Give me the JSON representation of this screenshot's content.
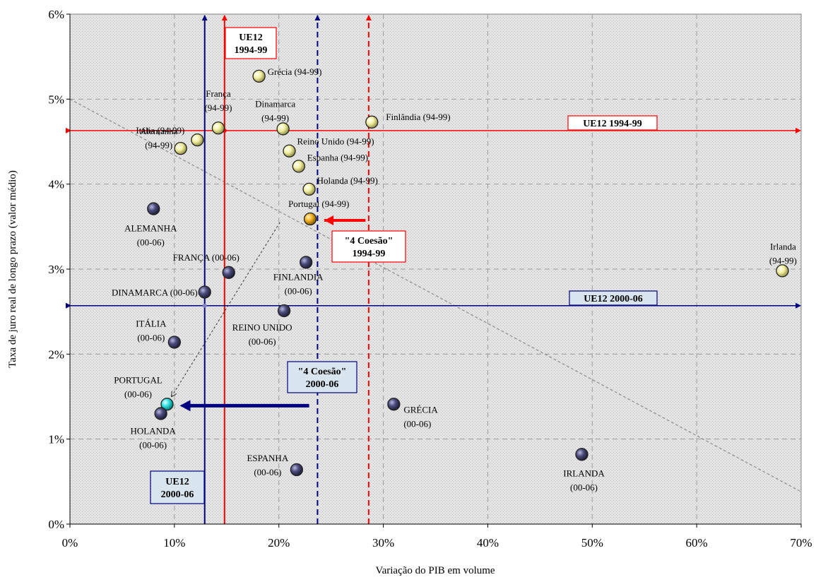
{
  "chart_data": {
    "type": "scatter",
    "xlabel": "Variação do PIB em volume",
    "ylabel": "Taxa de juro real de longo prazo (valor médio)",
    "xlim": [
      0,
      70
    ],
    "ylim": [
      0,
      6
    ],
    "x_ticks": [
      0,
      10,
      20,
      30,
      40,
      50,
      60,
      70
    ],
    "y_ticks": [
      0,
      1,
      2,
      3,
      4,
      5,
      6
    ],
    "x_tick_labels": [
      "0%",
      "10%",
      "20%",
      "30%",
      "40%",
      "50%",
      "60%",
      "70%"
    ],
    "y_tick_labels": [
      "0%",
      "1%",
      "2%",
      "3%",
      "4%",
      "5%",
      "6%"
    ],
    "grid": true,
    "colors": {
      "series_94_99": "#f2f0a0",
      "series_00_06": "#4a4a7a",
      "portugal_94_99": "#f0b020",
      "portugal_00_06": "#30e0e0",
      "eu12_94_99_line": "#ff0000",
      "eu12_00_06_line": "#000080",
      "plot_background": "#dcdcdc"
    },
    "series": [
      {
        "points": [
          {
            "x": 14.2,
            "y": 4.66,
            "label": [
              "França",
              "(94-99)"
            ]
          },
          {
            "x": 12.2,
            "y": 4.52,
            "label": [
              "Itália (94-99)"
            ]
          },
          {
            "x": 10.6,
            "y": 4.42,
            "label": [
              "Alemanha",
              "(94-99)"
            ]
          },
          {
            "x": 18.1,
            "y": 5.27,
            "label": [
              "Grécia (94-99)"
            ]
          },
          {
            "x": 20.4,
            "y": 4.65,
            "label": [
              "Dinamarca",
              "(94-99)"
            ]
          },
          {
            "x": 21.0,
            "y": 4.39,
            "label": [
              "Reino Unido (94-99)"
            ]
          },
          {
            "x": 21.9,
            "y": 4.21,
            "label": [
              "Espanha (94-99)"
            ]
          },
          {
            "x": 22.9,
            "y": 3.94,
            "label": [
              "Holanda (94-99)"
            ]
          },
          {
            "x": 23.0,
            "y": 3.59,
            "label": [
              "Portugal (94-99)"
            ]
          },
          {
            "x": 28.9,
            "y": 4.73,
            "label": [
              "Finlândia (94-99)"
            ]
          },
          {
            "x": 68.2,
            "y": 2.98,
            "label": [
              "Irlanda",
              "(94-99)"
            ]
          }
        ]
      },
      {
        "points": [
          {
            "x": 8.0,
            "y": 3.71,
            "label": [
              "ALEMANHA",
              "(00-06)"
            ]
          },
          {
            "x": 15.2,
            "y": 2.96,
            "label": [
              "FRANÇA (00-06)"
            ]
          },
          {
            "x": 12.9,
            "y": 2.73,
            "label": [
              "DINAMARCA (00-06)"
            ]
          },
          {
            "x": 22.6,
            "y": 3.08,
            "label": [
              "FINLANDIA",
              "(00-06)"
            ]
          },
          {
            "x": 20.5,
            "y": 2.51,
            "label": [
              "REINO UNIDO",
              "(00-06)"
            ]
          },
          {
            "x": 10.0,
            "y": 2.14,
            "label": [
              "ITÁLIA",
              "(00-06)"
            ]
          },
          {
            "x": 9.3,
            "y": 1.41,
            "label": [
              "PORTUGAL",
              "(00-06)"
            ]
          },
          {
            "x": 8.7,
            "y": 1.3,
            "label": [
              "HOLANDA",
              "(00-06)"
            ]
          },
          {
            "x": 21.7,
            "y": 0.64,
            "label": [
              "ESPANHA",
              "(00-06)"
            ]
          },
          {
            "x": 31.0,
            "y": 1.41,
            "label": [
              "GRÉCIA",
              "(00-06)"
            ]
          },
          {
            "x": 49.0,
            "y": 0.82,
            "label": [
              "IRLANDA",
              "(00-06)"
            ]
          }
        ]
      }
    ],
    "reference_lines": {
      "eu12_94_99": {
        "x": 14.8,
        "y": 4.63,
        "label": "UE12 1994-99",
        "label_vertical": [
          "UE12",
          "1994-99"
        ]
      },
      "eu12_00_06": {
        "x": 12.9,
        "y": 2.57,
        "label": "UE12 2000-06",
        "label_vertical": [
          "UE12",
          "2000-06"
        ]
      },
      "coesao_94_99": {
        "x": 28.6,
        "label": [
          "\"4 Coesão\"",
          "1994-99"
        ]
      },
      "coesao_00_06": {
        "x": 23.7,
        "label": [
          "\"4 Coesão\"",
          "2000-06"
        ]
      }
    },
    "trendline": {
      "x1": 0,
      "y1": 5.0,
      "x2": 70,
      "y2": 0.38
    }
  }
}
